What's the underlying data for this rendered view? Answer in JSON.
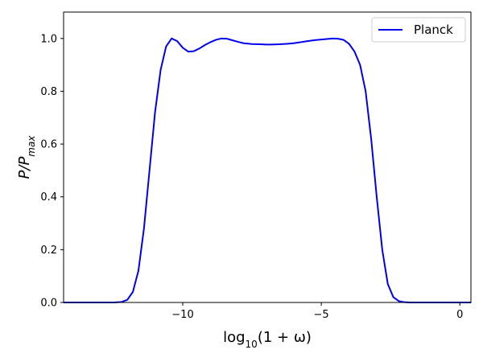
{
  "chart_data": {
    "type": "line",
    "xlim": [
      -14.3,
      0.4
    ],
    "ylim": [
      0.0,
      1.1
    ],
    "xticks": [
      -10,
      -5,
      0
    ],
    "xtick_labels": [
      "−10",
      "−5",
      "0"
    ],
    "yticks": [
      0.0,
      0.2,
      0.4,
      0.6,
      0.8,
      1.0
    ],
    "ytick_labels": [
      "0.0",
      "0.2",
      "0.4",
      "0.6",
      "0.8",
      "1.0"
    ],
    "xlabel": {
      "prefix": "log",
      "sub": "10",
      "rest": "(1 + ω)"
    },
    "ylabel": {
      "main": "P/P",
      "sub": "max"
    },
    "grid": false,
    "legend_position": "top-right",
    "series": [
      {
        "name": "Planck",
        "color": "#0000ee",
        "x": [
          -14.3,
          -12.5,
          -12.2,
          -12.0,
          -11.8,
          -11.6,
          -11.4,
          -11.2,
          -11.0,
          -10.8,
          -10.6,
          -10.4,
          -10.2,
          -10.0,
          -9.8,
          -9.6,
          -9.4,
          -9.2,
          -9.0,
          -8.8,
          -8.6,
          -8.4,
          -8.2,
          -8.0,
          -7.8,
          -7.5,
          -7.2,
          -7.0,
          -6.8,
          -6.5,
          -6.2,
          -6.0,
          -5.8,
          -5.5,
          -5.2,
          -5.0,
          -4.8,
          -4.6,
          -4.4,
          -4.2,
          -4.0,
          -3.8,
          -3.6,
          -3.4,
          -3.2,
          -3.0,
          -2.8,
          -2.6,
          -2.4,
          -2.2,
          -2.0,
          -1.8,
          -1.5,
          -1.0,
          0.4
        ],
        "y": [
          0.0,
          0.0,
          0.002,
          0.01,
          0.04,
          0.12,
          0.28,
          0.5,
          0.72,
          0.88,
          0.97,
          1.0,
          0.99,
          0.965,
          0.95,
          0.952,
          0.962,
          0.975,
          0.986,
          0.995,
          1.0,
          0.999,
          0.993,
          0.987,
          0.982,
          0.979,
          0.978,
          0.977,
          0.977,
          0.978,
          0.98,
          0.982,
          0.985,
          0.99,
          0.994,
          0.996,
          0.998,
          1.0,
          0.999,
          0.995,
          0.98,
          0.95,
          0.9,
          0.8,
          0.62,
          0.4,
          0.2,
          0.07,
          0.02,
          0.005,
          0.001,
          0.0,
          0.0,
          0.0,
          0.0
        ]
      }
    ]
  }
}
